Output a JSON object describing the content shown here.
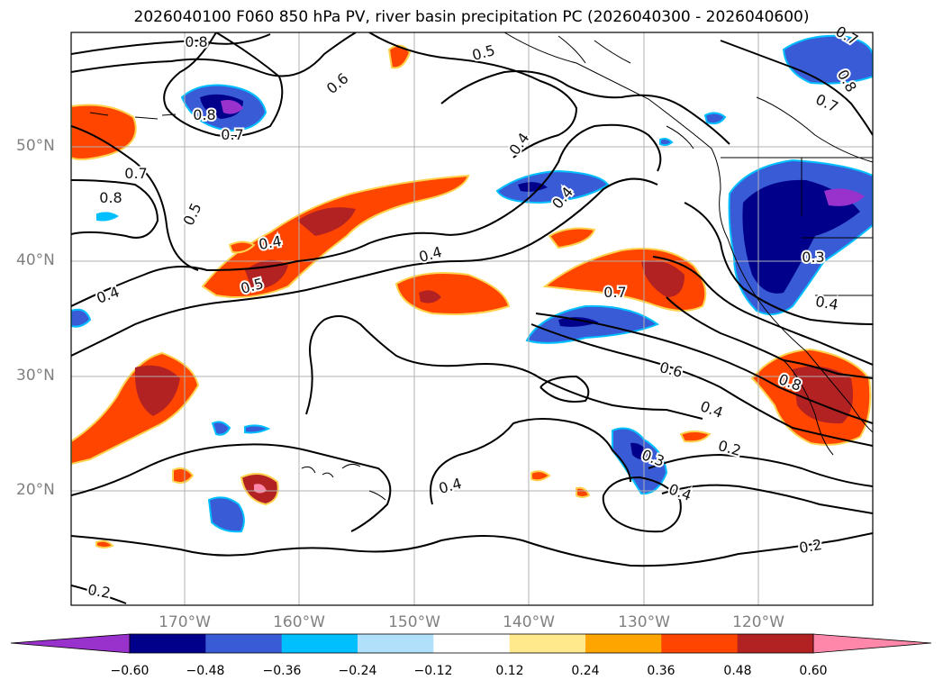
{
  "title": "2026040100 F060 850 hPa PV, river basin precipitation PC (2026040300 - 2026040600)",
  "axes": {
    "lat_labels": [
      "50°N",
      "40°N",
      "30°N",
      "20°N"
    ],
    "lon_labels": [
      "170°W",
      "160°W",
      "150°W",
      "140°W",
      "130°W",
      "120°W"
    ],
    "lat_range": [
      10,
      60
    ],
    "lon_range": [
      -180,
      -110
    ],
    "gridlines": true
  },
  "colorbar": {
    "ticks": [
      "−0.60",
      "−0.48",
      "−0.36",
      "−0.24",
      "−0.12",
      "0.12",
      "0.24",
      "0.36",
      "0.48",
      "0.60"
    ],
    "colors": [
      "#9932cc",
      "#00008b",
      "#3a5bd6",
      "#00bfff",
      "#b0e0fa",
      "#ffffff",
      "#ffe98c",
      "#ffa500",
      "#ff4500",
      "#b22222",
      "#ff88aa"
    ],
    "extend": "both"
  },
  "contour_labels": [
    "0.8",
    "0.6",
    "0.5",
    "0.7",
    "0.8",
    "0.7",
    "0.8",
    "0.7",
    "0.4",
    "0.4",
    "0.4",
    "0.4",
    "0.5",
    "0.5",
    "0.4",
    "0.7",
    "0.6",
    "0.4",
    "0.2",
    "0.3",
    "0.4",
    "0.4",
    "0.3",
    "0.4",
    "0.8",
    "0.2",
    "0.2",
    "0.8",
    "0.7"
  ],
  "fields": [
    "850 hPa PV (contours)",
    "river basin precipitation PC (shaded)"
  ]
}
